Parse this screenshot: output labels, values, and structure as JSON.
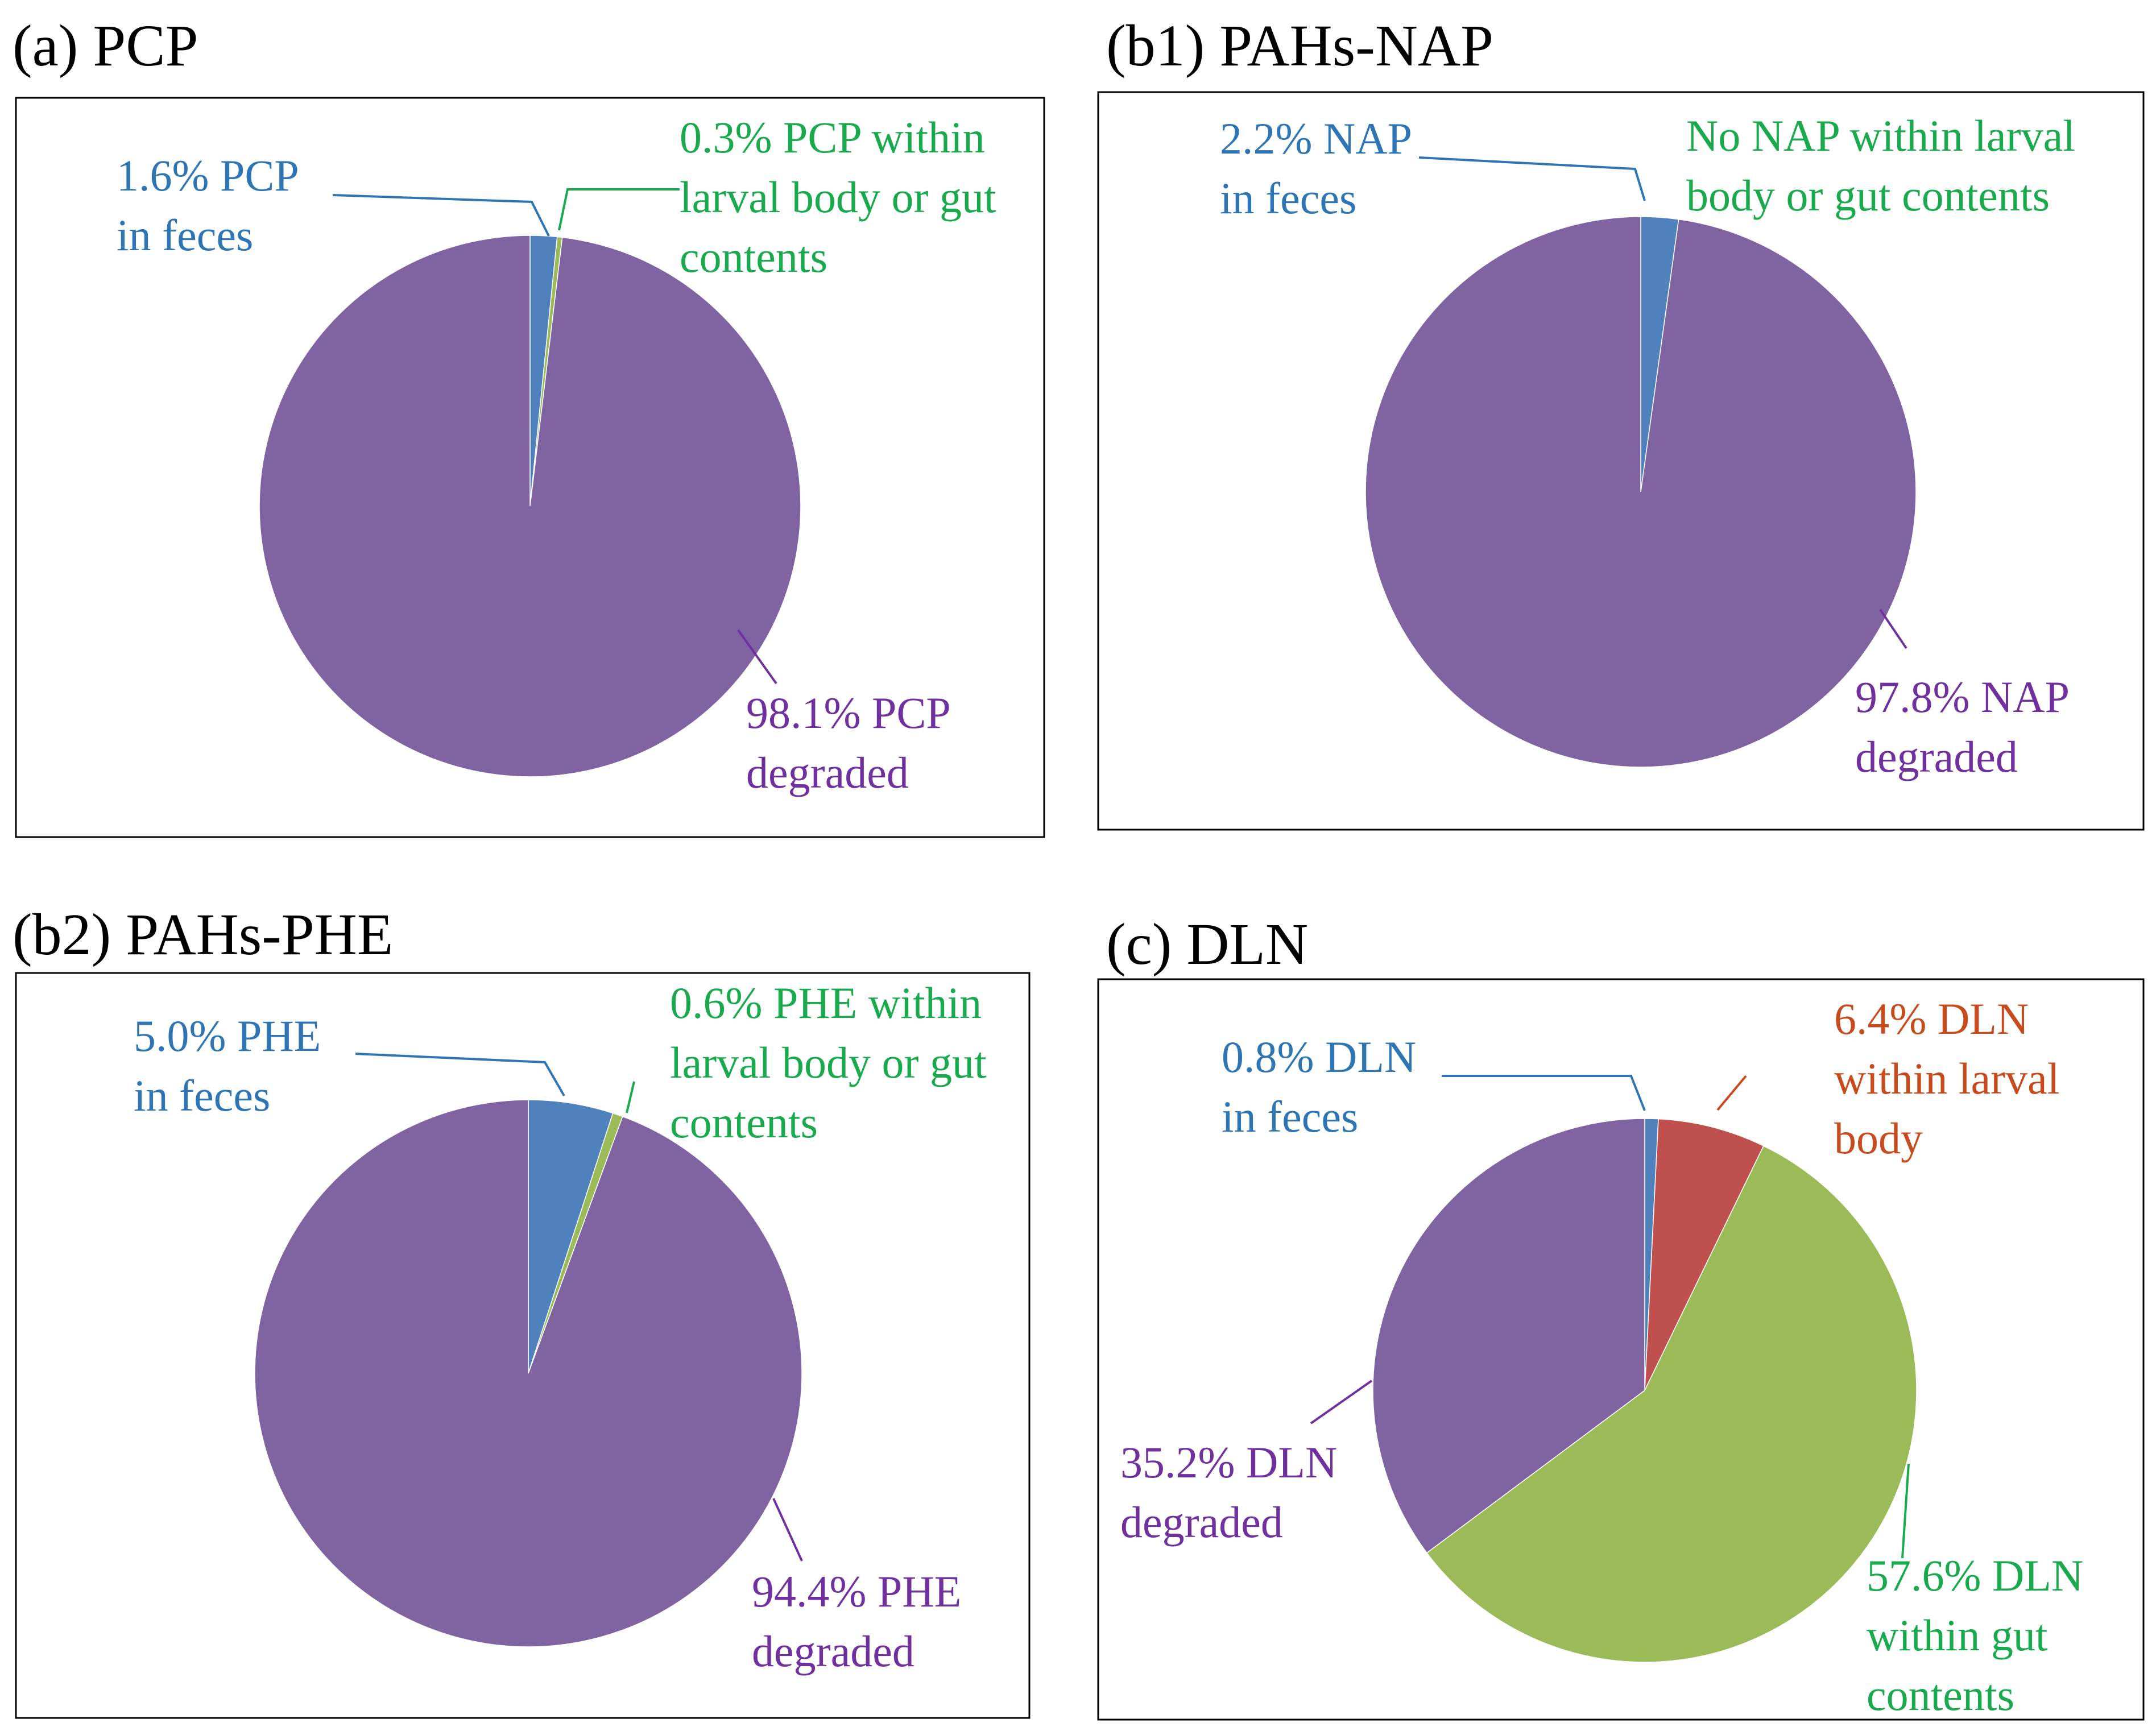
{
  "colors": {
    "feces": "#4f81bd",
    "larval": "#c0504d",
    "gut": "#9bbb59",
    "degraded": "#8064a2",
    "feces_text": "#2e75b6",
    "larval_text": "#c84b1e",
    "gut_text": "#1aaa4e",
    "degraded_text": "#7030a0",
    "frame": "#000000"
  },
  "chart_data": [
    {
      "id": "a",
      "type": "pie",
      "title": "(a) PCP",
      "slices": [
        {
          "key": "feces",
          "name": "in feces",
          "value": 1.6,
          "label_lines": [
            "1.6% PCP",
            "in feces"
          ]
        },
        {
          "key": "gut",
          "name": "within larval body or gut contents",
          "value": 0.3,
          "label_lines": [
            "0.3% PCP within",
            "larval body or gut",
            "contents"
          ]
        },
        {
          "key": "degraded",
          "name": "degraded",
          "value": 98.1,
          "label_lines": [
            "98.1% PCP",
            "degraded"
          ]
        }
      ]
    },
    {
      "id": "b1",
      "type": "pie",
      "title": "(b1) PAHs-NAP",
      "slices": [
        {
          "key": "feces",
          "name": "in feces",
          "value": 2.2,
          "label_lines": [
            "2.2% NAP",
            "in feces"
          ]
        },
        {
          "key": "gut",
          "name": "within larval body or gut contents",
          "value": 0,
          "label_lines": [
            "No NAP within larval",
            "body or gut contents"
          ]
        },
        {
          "key": "degraded",
          "name": "degraded",
          "value": 97.8,
          "label_lines": [
            "97.8% NAP",
            "degraded"
          ]
        }
      ]
    },
    {
      "id": "b2",
      "type": "pie",
      "title": "(b2) PAHs-PHE",
      "slices": [
        {
          "key": "feces",
          "name": "in feces",
          "value": 5.0,
          "label_lines": [
            "5.0% PHE",
            "in feces"
          ]
        },
        {
          "key": "gut",
          "name": "within larval body or gut contents",
          "value": 0.6,
          "label_lines": [
            "0.6% PHE within",
            "larval body or gut",
            "contents"
          ]
        },
        {
          "key": "degraded",
          "name": "degraded",
          "value": 94.4,
          "label_lines": [
            "94.4% PHE",
            "degraded"
          ]
        }
      ]
    },
    {
      "id": "c",
      "type": "pie",
      "title": "(c) DLN",
      "slices": [
        {
          "key": "feces",
          "name": "in feces",
          "value": 0.8,
          "label_lines": [
            "0.8% DLN",
            "in feces"
          ]
        },
        {
          "key": "larval",
          "name": "within larval body",
          "value": 6.4,
          "label_lines": [
            "6.4% DLN",
            "within larval",
            "body"
          ]
        },
        {
          "key": "gut",
          "name": "within gut contents",
          "value": 57.6,
          "label_lines": [
            "57.6% DLN",
            "within gut",
            "contents"
          ]
        },
        {
          "key": "degraded",
          "name": "degraded",
          "value": 35.2,
          "label_lines": [
            "35.2% DLN",
            "degraded"
          ]
        }
      ]
    }
  ]
}
